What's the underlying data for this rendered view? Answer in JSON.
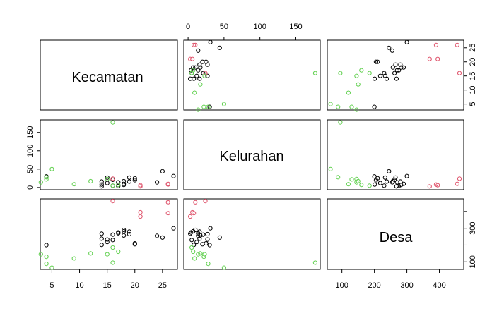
{
  "chart_data": {
    "type": "scatter-matrix",
    "variables": [
      "Kecamatan",
      "Kelurahan",
      "Desa"
    ],
    "colors": {
      "group1": "#000000",
      "group2": "#df536b",
      "group3": "#61d04f"
    },
    "axes": {
      "Kecamatan": {
        "range": [
          2.9,
          27.7
        ],
        "ticks": [
          5,
          10,
          15,
          20,
          25
        ]
      },
      "Kelurahan": {
        "range": [
          -6,
          184
        ],
        "ticks": [
          0,
          50,
          100,
          150
        ]
      },
      "Desa": {
        "range": [
          55,
          475
        ],
        "ticks": [
          100,
          200,
          300,
          400
        ]
      }
    },
    "tick_labels": {
      "Kecamatan": [
        "5",
        "10",
        "15",
        "20",
        "25"
      ],
      "Kelurahan": [
        "0",
        "50",
        "100",
        "150"
      ],
      "Desa_horizontal": [
        "100",
        "200",
        "300",
        "400"
      ],
      "Desa_vertical": [
        "100",
        "300"
      ]
    },
    "points": [
      {
        "k": 27,
        "l": 31,
        "d": 300,
        "g": 1
      },
      {
        "k": 25,
        "l": 44,
        "d": 245,
        "g": 1
      },
      {
        "k": 24,
        "l": 14,
        "d": 255,
        "g": 1
      },
      {
        "k": 20,
        "l": 25,
        "d": 210,
        "g": 1
      },
      {
        "k": 20,
        "l": 20,
        "d": 205,
        "g": 1
      },
      {
        "k": 19,
        "l": 27,
        "d": 265,
        "g": 1
      },
      {
        "k": 19,
        "l": 16,
        "d": 280,
        "g": 1
      },
      {
        "k": 18,
        "l": 7,
        "d": 282,
        "g": 1
      },
      {
        "k": 18,
        "l": 10,
        "d": 290,
        "g": 1
      },
      {
        "k": 18,
        "l": 17,
        "d": 257,
        "g": 1
      },
      {
        "k": 17,
        "l": 4,
        "d": 275,
        "g": 1
      },
      {
        "k": 17,
        "l": 14,
        "d": 270,
        "g": 1
      },
      {
        "k": 16,
        "l": 21,
        "d": 262,
        "g": 1
      },
      {
        "k": 16,
        "l": 5,
        "d": 230,
        "g": 1
      },
      {
        "k": 15,
        "l": 27,
        "d": 233,
        "g": 1
      },
      {
        "k": 15,
        "l": 12,
        "d": 218,
        "g": 1
      },
      {
        "k": 14,
        "l": 16,
        "d": 238,
        "g": 1
      },
      {
        "k": 14,
        "l": 8,
        "d": 201,
        "g": 1
      },
      {
        "k": 14,
        "l": 3,
        "d": 268,
        "g": 1
      },
      {
        "k": 4,
        "l": 30,
        "d": 200,
        "g": 1
      },
      {
        "k": 26,
        "l": 8,
        "d": 390,
        "g": 2
      },
      {
        "k": 26,
        "l": 10,
        "d": 455,
        "g": 2
      },
      {
        "k": 21,
        "l": 3,
        "d": 370,
        "g": 2
      },
      {
        "k": 21,
        "l": 6,
        "d": 395,
        "g": 2
      },
      {
        "k": 16,
        "l": 24,
        "d": 462,
        "g": 2
      },
      {
        "k": 16,
        "l": 177,
        "d": 95,
        "g": 3
      },
      {
        "k": 17,
        "l": 7,
        "d": 160,
        "g": 3
      },
      {
        "k": 16,
        "l": 5,
        "d": 185,
        "g": 3
      },
      {
        "k": 15,
        "l": 23,
        "d": 145,
        "g": 3
      },
      {
        "k": 12,
        "l": 17,
        "d": 150,
        "g": 3
      },
      {
        "k": 9,
        "l": 9,
        "d": 120,
        "g": 3
      },
      {
        "k": 5,
        "l": 50,
        "d": 65,
        "g": 3
      },
      {
        "k": 4,
        "l": 28,
        "d": 88,
        "g": 3
      },
      {
        "k": 4,
        "l": 22,
        "d": 130,
        "g": 3
      },
      {
        "k": 3,
        "l": 14,
        "d": 145,
        "g": 3
      }
    ]
  }
}
